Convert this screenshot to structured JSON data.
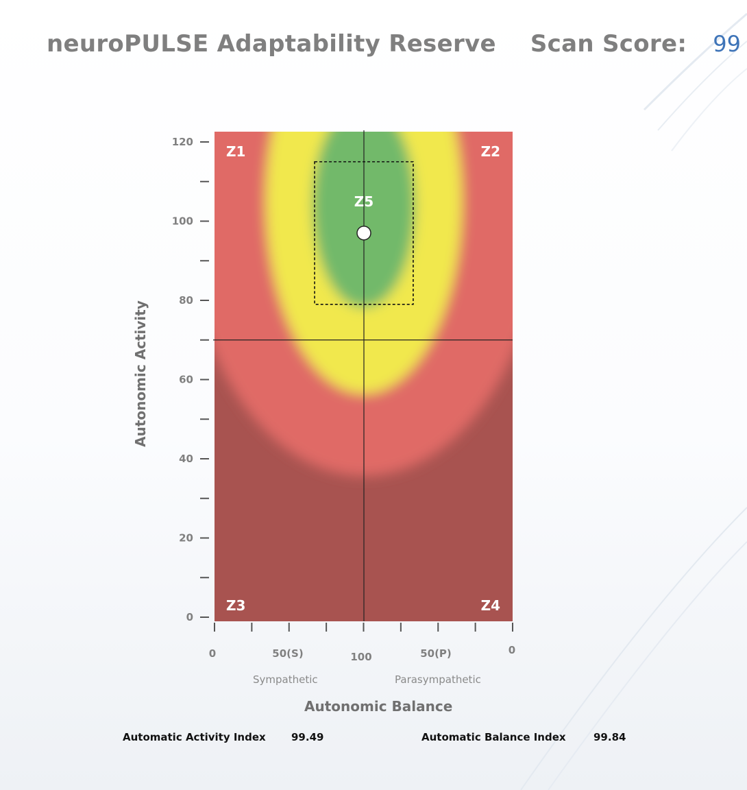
{
  "header": {
    "title": "neuroPULSE Adaptability Reserve",
    "score_label": "Scan Score:",
    "score_value": "99"
  },
  "chart_data": {
    "type": "scatter",
    "xlabel": "Autonomic Balance",
    "ylabel": "Autonomic Activity",
    "ylim": [
      0,
      120
    ],
    "y_ticks": [
      "0",
      "20",
      "40",
      "60",
      "80",
      "100",
      "120"
    ],
    "x_tick_labels": [
      "0",
      "50(S)",
      "100",
      "50(P)",
      "0"
    ],
    "x_sublabels": [
      "Sympathetic",
      "Parasympathetic"
    ],
    "zones": [
      "Z1",
      "Z2",
      "Z3",
      "Z4",
      "Z5"
    ],
    "zone_colors": {
      "green": "#72b96a",
      "yellow": "#f1e84e",
      "light_red": "#e06b66",
      "dark_red": "#a85350"
    },
    "crosshair": {
      "x": 100,
      "y": 70
    },
    "point": {
      "x": 100,
      "y": 97
    },
    "target_box": {
      "x": [
        67,
        133
      ],
      "y": [
        79,
        115
      ]
    },
    "grid": false,
    "legend": "none"
  },
  "indices": {
    "activity_label": "Automatic Activity Index",
    "activity_value": "99.49",
    "balance_label": "Automatic Balance Index",
    "balance_value": "99.84"
  }
}
